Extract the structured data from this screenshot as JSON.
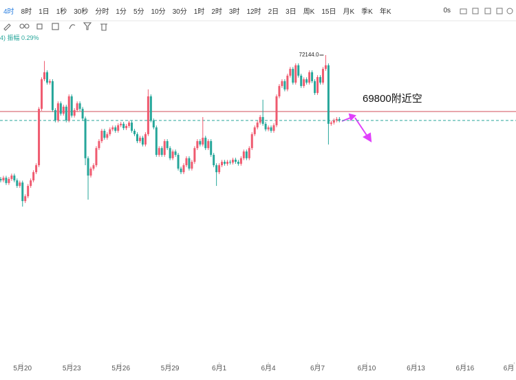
{
  "toolbar": {
    "intervals": [
      "4时",
      "8时",
      "1日",
      "1秒",
      "30秒",
      "分时",
      "1分",
      "5分",
      "10分",
      "30分",
      "1时",
      "2时",
      "3时",
      "12时",
      "2日",
      "3日",
      "周K",
      "15日",
      "月K",
      "季K",
      "年K"
    ],
    "right": "0s"
  },
  "legend_text": "4) 振幅 0.29%",
  "chart_data": {
    "type": "candlestick",
    "up_color": "#ef5a6f",
    "down_color": "#26a69a",
    "open": [
      67000,
      66940,
      67050,
      66830,
      67000,
      67140,
      66940,
      66710,
      66850,
      66080,
      66280,
      66710,
      66940,
      67280,
      67570,
      69910,
      71140,
      71430,
      71000,
      71060,
      69860,
      69430,
      70140,
      69710,
      70000,
      69430,
      70430,
      69630,
      69860,
      70140,
      69910,
      69510,
      67860,
      67140,
      67430,
      67570,
      68280,
      68570,
      69000,
      68710,
      68860,
      69060,
      69140,
      69000,
      69230,
      69290,
      69110,
      69200,
      69340,
      69000,
      68860,
      68570,
      68710,
      68430,
      68860,
      70430,
      69430,
      69140,
      68000,
      68280,
      68000,
      68570,
      68280,
      67860,
      68140,
      68000,
      67430,
      67280,
      67570,
      67860,
      67430,
      67710,
      68280,
      68570,
      68430,
      68710,
      68280,
      68570,
      68000,
      67570,
      67280,
      67570,
      67710,
      67630,
      67710,
      67680,
      67800,
      67710,
      67630,
      67860,
      68140,
      67860,
      68280,
      68860,
      69140,
      69340,
      69570,
      69290,
      69060,
      69140,
      69000,
      69230,
      70430,
      70860,
      71060,
      70720,
      71290,
      71570,
      71000,
      71720,
      71290,
      70860,
      71140,
      71000,
      71430,
      71060,
      70570,
      71230,
      71000,
      71570,
      71720,
      69290,
      69340,
      69430,
      69490
    ],
    "high": [
      67080,
      67130,
      67130,
      67080,
      67220,
      67220,
      67020,
      66930,
      66930,
      66360,
      66790,
      67020,
      67360,
      67650,
      69990,
      71220,
      71900,
      71510,
      71140,
      71140,
      69940,
      70220,
      70220,
      70080,
      70080,
      70510,
      70510,
      69940,
      70220,
      70220,
      69990,
      69590,
      67940,
      67510,
      67650,
      68360,
      68650,
      69080,
      69080,
      68940,
      69140,
      69220,
      69220,
      69310,
      69370,
      69370,
      69280,
      69420,
      69420,
      69080,
      68940,
      68790,
      68790,
      68940,
      70720,
      70510,
      69510,
      69220,
      68360,
      68360,
      68650,
      68650,
      68360,
      68220,
      68220,
      68080,
      67510,
      67650,
      67940,
      67940,
      67790,
      68360,
      68650,
      68650,
      69570,
      68790,
      68650,
      68650,
      68080,
      67650,
      67650,
      67790,
      67790,
      67790,
      67790,
      67880,
      67880,
      67790,
      67940,
      68220,
      68220,
      68360,
      68940,
      69220,
      69420,
      69650,
      70290,
      69370,
      69220,
      69220,
      69310,
      70510,
      70940,
      71140,
      71140,
      71370,
      71650,
      71650,
      71800,
      71800,
      71370,
      71220,
      71220,
      71510,
      71510,
      71140,
      71310,
      71310,
      71650,
      72144,
      71800,
      69420,
      69510,
      69570,
      69570
    ],
    "low": [
      66860,
      66860,
      66750,
      66750,
      66920,
      66860,
      66630,
      66630,
      65850,
      66000,
      66200,
      66630,
      66860,
      67200,
      67490,
      69830,
      71060,
      70920,
      70920,
      69780,
      69350,
      69350,
      69630,
      69630,
      69350,
      69350,
      69550,
      69550,
      69780,
      69830,
      69430,
      67570,
      66140,
      67060,
      67350,
      67490,
      68200,
      68490,
      68630,
      68630,
      68780,
      68980,
      68920,
      68920,
      69150,
      69030,
      69030,
      69120,
      68920,
      68780,
      68490,
      68490,
      68350,
      68350,
      68780,
      69350,
      69060,
      67920,
      67920,
      67920,
      67920,
      68200,
      67780,
      67780,
      67920,
      67350,
      67200,
      67200,
      67490,
      67350,
      67350,
      67630,
      68200,
      68350,
      68350,
      68200,
      68200,
      67920,
      67490,
      66710,
      67200,
      67490,
      67550,
      67550,
      67600,
      67600,
      67630,
      67550,
      67550,
      67780,
      67780,
      67780,
      68200,
      68780,
      69060,
      69260,
      69210,
      68980,
      68980,
      68920,
      68920,
      69150,
      70350,
      70780,
      70640,
      70640,
      71210,
      70920,
      70920,
      71210,
      70780,
      70780,
      70920,
      70920,
      70980,
      70490,
      70490,
      70920,
      70920,
      71490,
      68430,
      69210,
      69260,
      69350,
      69350
    ],
    "close": [
      66940,
      67050,
      66830,
      67000,
      67140,
      66940,
      66710,
      66850,
      66080,
      66280,
      66710,
      66940,
      67280,
      67570,
      69910,
      71140,
      71430,
      71000,
      71060,
      69860,
      69430,
      70140,
      69710,
      70000,
      69430,
      70430,
      69630,
      69860,
      70140,
      69910,
      69510,
      67860,
      67140,
      67430,
      67570,
      68280,
      68570,
      69000,
      68710,
      68860,
      69060,
      69140,
      69000,
      69230,
      69290,
      69110,
      69200,
      69340,
      69000,
      68860,
      68570,
      68710,
      68430,
      68860,
      70430,
      69430,
      69140,
      68000,
      68280,
      68000,
      68570,
      68280,
      67860,
      68140,
      68000,
      67430,
      67280,
      67570,
      67860,
      67430,
      67710,
      68280,
      68570,
      68430,
      68710,
      68280,
      68570,
      68000,
      67570,
      67280,
      67570,
      67710,
      67630,
      67710,
      67680,
      67800,
      67710,
      67630,
      67860,
      68140,
      67860,
      68280,
      68860,
      69140,
      69340,
      69570,
      69290,
      69060,
      69140,
      69000,
      69230,
      70430,
      70860,
      71060,
      70720,
      71290,
      71570,
      71000,
      71720,
      71290,
      70860,
      71140,
      71000,
      71430,
      71060,
      70570,
      71230,
      71000,
      71570,
      71720,
      69290,
      69340,
      69430,
      69490,
      69430
    ],
    "ylim": [
      59420,
      73060
    ],
    "xticks": [
      {
        "value": 8,
        "label": "5月20"
      },
      {
        "value": 26,
        "label": "5月23"
      },
      {
        "value": 44,
        "label": "5月26"
      },
      {
        "value": 62,
        "label": "5月29"
      },
      {
        "value": 80,
        "label": "6月1"
      },
      {
        "value": 98,
        "label": "6月4"
      },
      {
        "value": 116,
        "label": "6月7"
      },
      {
        "value": 134,
        "label": "6月10"
      },
      {
        "value": 152,
        "label": "6月13"
      },
      {
        "value": 170,
        "label": "6月16"
      },
      {
        "value": 188,
        "label": "6月"
      }
    ],
    "max_label": {
      "value": 72144,
      "label": "72144.0"
    },
    "hline": {
      "value": 69800,
      "color": "#d9707a"
    },
    "annotation": "69800附近空"
  }
}
